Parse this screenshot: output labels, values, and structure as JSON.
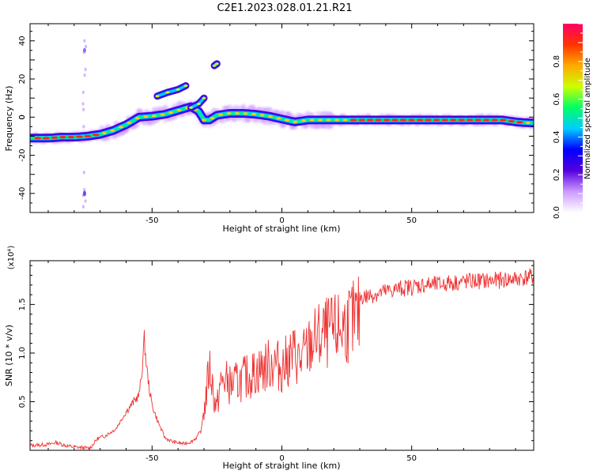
{
  "title": "C2E1.2023.028.01.21.R21",
  "colors": {
    "trace": "#ee3333",
    "axes": "#000000"
  },
  "chart_data": [
    {
      "type": "heatmap",
      "xlabel": "Height of straight line (km)",
      "ylabel": "Frequency (Hz)",
      "xlim": [
        -97,
        97
      ],
      "ylim": [
        -50,
        49
      ],
      "x_ticks": [
        -50,
        0,
        50
      ],
      "y_ticks": [
        -40,
        -20,
        0,
        20,
        40
      ],
      "grid": false,
      "colorbar": {
        "label": "Normalized spectral amplitude",
        "range": [
          0,
          1
        ],
        "ticks": [
          "0.0",
          "0.2",
          "0.4",
          "0.6",
          "0.8"
        ],
        "colormap": [
          "#ffffff",
          "#cc99ff",
          "#5500dd",
          "#0000ff",
          "#00ccff",
          "#00ff66",
          "#ccff00",
          "#ffaa00",
          "#ff3300",
          "#ff0066"
        ]
      },
      "ridge": {
        "x": [
          -97,
          -90,
          -85,
          -80,
          -75,
          -70,
          -65,
          -60,
          -55,
          -50,
          -45,
          -40,
          -35,
          -32,
          -30,
          -28,
          -25,
          -20,
          -15,
          -10,
          -5,
          0,
          5,
          10,
          20,
          30,
          40,
          50,
          60,
          70,
          80,
          85,
          90,
          95,
          97
        ],
        "y": [
          -11,
          -11,
          -10.5,
          -10.5,
          -10,
          -9,
          -7,
          -4,
          0,
          0.5,
          1.5,
          3.5,
          5.5,
          3,
          -1.5,
          -1.5,
          1,
          2,
          2,
          1.5,
          0.5,
          -1,
          -2.5,
          -1.5,
          -1.5,
          -1.5,
          -1.5,
          -1.5,
          -1.5,
          -1.5,
          -1.5,
          -1.5,
          -2.5,
          -3,
          -3
        ]
      },
      "branches": [
        {
          "x": [
            -48,
            -44,
            -40,
            -37
          ],
          "y": [
            11,
            13,
            14.5,
            16.5
          ]
        },
        {
          "x": [
            -35,
            -32,
            -30
          ],
          "y": [
            5,
            7,
            10
          ]
        },
        {
          "x": [
            -26,
            -25
          ],
          "y": [
            27,
            28
          ]
        }
      ],
      "vertical_streak": {
        "x": -76,
        "y_range": [
          -47,
          40
        ]
      }
    },
    {
      "type": "line",
      "xlabel": "Height of straight line (km)",
      "ylabel": "SNR (10 * v/v)",
      "multiplier_label": "(x10⁴)",
      "xlim": [
        -97,
        97
      ],
      "ylim": [
        0,
        1.95
      ],
      "x_ticks": [
        -50,
        0,
        50
      ],
      "y_ticks": [
        0.5,
        1.0,
        1.5
      ],
      "grid": false,
      "series": [
        {
          "x": [
            -97,
            -90,
            -87,
            -82,
            -78,
            -74,
            -71,
            -68,
            -64,
            -61,
            -58,
            -55,
            -54,
            -53,
            -52,
            -51,
            -50,
            -48,
            -45,
            -42,
            -38,
            -35,
            -33,
            -31,
            -30,
            -29,
            -28,
            -27,
            -26,
            -25,
            -24,
            -22,
            -20,
            -18,
            -15,
            -12,
            -9,
            -6,
            -3,
            0,
            3,
            5,
            7,
            10,
            12,
            15,
            18,
            20,
            22,
            25,
            28,
            30,
            33,
            35,
            40,
            45,
            50,
            55,
            60,
            65,
            70,
            75,
            80,
            85,
            90,
            95,
            97
          ],
          "y": [
            0.05,
            0.06,
            0.08,
            0.04,
            0.03,
            0.02,
            0.12,
            0.15,
            0.22,
            0.35,
            0.45,
            0.55,
            0.75,
            1.1,
            0.8,
            0.6,
            0.45,
            0.3,
            0.12,
            0.08,
            0.06,
            0.08,
            0.12,
            0.2,
            0.45,
            0.7,
            1.0,
            0.85,
            0.6,
            0.5,
            0.75,
            0.85,
            0.78,
            0.8,
            0.85,
            0.9,
            0.95,
            1.0,
            1.05,
            0.98,
            1.1,
            1.15,
            1.05,
            1.2,
            1.3,
            1.35,
            1.4,
            1.4,
            1.45,
            1.5,
            1.55,
            1.6,
            1.6,
            1.62,
            1.65,
            1.68,
            1.7,
            1.72,
            1.72,
            1.74,
            1.75,
            1.76,
            1.76,
            1.77,
            1.78,
            1.8,
            1.8
          ]
        }
      ]
    }
  ]
}
